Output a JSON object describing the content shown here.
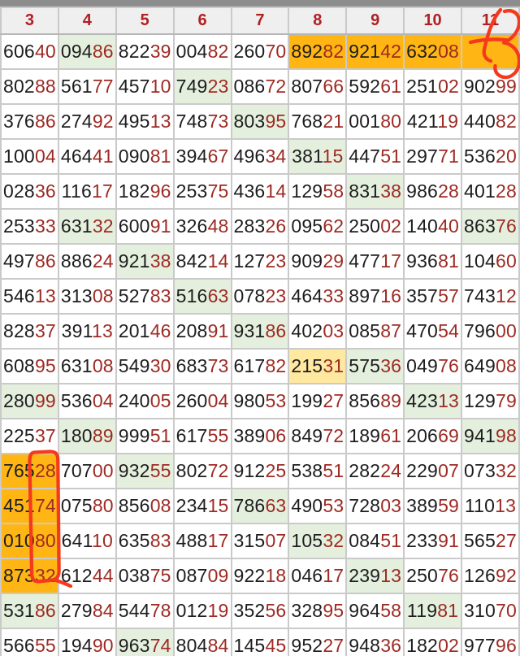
{
  "table": {
    "headers": [
      "3",
      "4",
      "5",
      "6",
      "7",
      "8",
      "9",
      "10",
      "11"
    ],
    "rows": [
      {
        "cells": [
          {
            "v": "60640",
            "h": ""
          },
          {
            "v": "09486",
            "h": "green"
          },
          {
            "v": "82239",
            "h": ""
          },
          {
            "v": "00482",
            "h": ""
          },
          {
            "v": "26070",
            "h": ""
          },
          {
            "v": "89282",
            "h": "orange"
          },
          {
            "v": "92142",
            "h": "orange"
          },
          {
            "v": "63208",
            "h": "orange"
          },
          {
            "v": "",
            "h": "orange"
          }
        ]
      },
      {
        "cells": [
          {
            "v": "80288",
            "h": ""
          },
          {
            "v": "56177",
            "h": ""
          },
          {
            "v": "45710",
            "h": ""
          },
          {
            "v": "74923",
            "h": "green"
          },
          {
            "v": "08672",
            "h": ""
          },
          {
            "v": "80766",
            "h": ""
          },
          {
            "v": "59261",
            "h": ""
          },
          {
            "v": "25102",
            "h": ""
          },
          {
            "v": "90299",
            "h": ""
          }
        ]
      },
      {
        "cells": [
          {
            "v": "37686",
            "h": ""
          },
          {
            "v": "27492",
            "h": ""
          },
          {
            "v": "49513",
            "h": ""
          },
          {
            "v": "74873",
            "h": ""
          },
          {
            "v": "80395",
            "h": "green"
          },
          {
            "v": "76821",
            "h": ""
          },
          {
            "v": "00180",
            "h": ""
          },
          {
            "v": "42119",
            "h": ""
          },
          {
            "v": "44082",
            "h": ""
          }
        ]
      },
      {
        "cells": [
          {
            "v": "10004",
            "h": ""
          },
          {
            "v": "46441",
            "h": ""
          },
          {
            "v": "09081",
            "h": ""
          },
          {
            "v": "39467",
            "h": ""
          },
          {
            "v": "49634",
            "h": ""
          },
          {
            "v": "38115",
            "h": "green"
          },
          {
            "v": "44751",
            "h": ""
          },
          {
            "v": "29771",
            "h": ""
          },
          {
            "v": "53620",
            "h": ""
          }
        ]
      },
      {
        "cells": [
          {
            "v": "02836",
            "h": ""
          },
          {
            "v": "11617",
            "h": ""
          },
          {
            "v": "18296",
            "h": ""
          },
          {
            "v": "25375",
            "h": ""
          },
          {
            "v": "43614",
            "h": ""
          },
          {
            "v": "12958",
            "h": ""
          },
          {
            "v": "83138",
            "h": "green"
          },
          {
            "v": "98628",
            "h": ""
          },
          {
            "v": "40128",
            "h": ""
          }
        ]
      },
      {
        "cells": [
          {
            "v": "25333",
            "h": ""
          },
          {
            "v": "63132",
            "h": "green"
          },
          {
            "v": "60091",
            "h": ""
          },
          {
            "v": "32648",
            "h": ""
          },
          {
            "v": "28326",
            "h": ""
          },
          {
            "v": "09562",
            "h": ""
          },
          {
            "v": "25002",
            "h": ""
          },
          {
            "v": "14040",
            "h": ""
          },
          {
            "v": "86376",
            "h": "green"
          }
        ]
      },
      {
        "cells": [
          {
            "v": "49786",
            "h": ""
          },
          {
            "v": "88624",
            "h": ""
          },
          {
            "v": "92138",
            "h": "green"
          },
          {
            "v": "84214",
            "h": ""
          },
          {
            "v": "12723",
            "h": ""
          },
          {
            "v": "90929",
            "h": ""
          },
          {
            "v": "47717",
            "h": ""
          },
          {
            "v": "93681",
            "h": ""
          },
          {
            "v": "10460",
            "h": ""
          }
        ]
      },
      {
        "cells": [
          {
            "v": "54613",
            "h": ""
          },
          {
            "v": "31308",
            "h": ""
          },
          {
            "v": "52783",
            "h": ""
          },
          {
            "v": "51663",
            "h": "green"
          },
          {
            "v": "07823",
            "h": ""
          },
          {
            "v": "46433",
            "h": ""
          },
          {
            "v": "89716",
            "h": ""
          },
          {
            "v": "35757",
            "h": ""
          },
          {
            "v": "74312",
            "h": ""
          }
        ]
      },
      {
        "cells": [
          {
            "v": "82837",
            "h": ""
          },
          {
            "v": "39113",
            "h": ""
          },
          {
            "v": "20146",
            "h": ""
          },
          {
            "v": "20891",
            "h": ""
          },
          {
            "v": "93186",
            "h": "green"
          },
          {
            "v": "40203",
            "h": ""
          },
          {
            "v": "08587",
            "h": ""
          },
          {
            "v": "47054",
            "h": ""
          },
          {
            "v": "79600",
            "h": ""
          }
        ]
      },
      {
        "cells": [
          {
            "v": "60895",
            "h": ""
          },
          {
            "v": "63108",
            "h": ""
          },
          {
            "v": "54930",
            "h": ""
          },
          {
            "v": "68373",
            "h": ""
          },
          {
            "v": "61782",
            "h": ""
          },
          {
            "v": "21531",
            "h": "yellow"
          },
          {
            "v": "57536",
            "h": "green"
          },
          {
            "v": "04976",
            "h": ""
          },
          {
            "v": "64908",
            "h": ""
          }
        ]
      },
      {
        "cells": [
          {
            "v": "28099",
            "h": "green"
          },
          {
            "v": "53604",
            "h": ""
          },
          {
            "v": "24005",
            "h": ""
          },
          {
            "v": "26004",
            "h": ""
          },
          {
            "v": "98053",
            "h": ""
          },
          {
            "v": "19927",
            "h": ""
          },
          {
            "v": "85689",
            "h": ""
          },
          {
            "v": "42313",
            "h": "green"
          },
          {
            "v": "12979",
            "h": ""
          }
        ]
      },
      {
        "cells": [
          {
            "v": "22537",
            "h": ""
          },
          {
            "v": "18089",
            "h": "green"
          },
          {
            "v": "99951",
            "h": ""
          },
          {
            "v": "61755",
            "h": ""
          },
          {
            "v": "38906",
            "h": ""
          },
          {
            "v": "84972",
            "h": ""
          },
          {
            "v": "18961",
            "h": ""
          },
          {
            "v": "20669",
            "h": ""
          },
          {
            "v": "94198",
            "h": "green"
          }
        ]
      },
      {
        "cells": [
          {
            "v": "76528",
            "h": "orange"
          },
          {
            "v": "70700",
            "h": ""
          },
          {
            "v": "93255",
            "h": "green"
          },
          {
            "v": "80272",
            "h": ""
          },
          {
            "v": "91225",
            "h": ""
          },
          {
            "v": "53851",
            "h": ""
          },
          {
            "v": "28224",
            "h": ""
          },
          {
            "v": "22907",
            "h": ""
          },
          {
            "v": "07332",
            "h": ""
          }
        ]
      },
      {
        "cells": [
          {
            "v": "45174",
            "h": "orange"
          },
          {
            "v": "07580",
            "h": ""
          },
          {
            "v": "85608",
            "h": ""
          },
          {
            "v": "23415",
            "h": ""
          },
          {
            "v": "78663",
            "h": "green"
          },
          {
            "v": "49053",
            "h": ""
          },
          {
            "v": "72803",
            "h": ""
          },
          {
            "v": "38959",
            "h": ""
          },
          {
            "v": "11013",
            "h": ""
          }
        ]
      },
      {
        "cells": [
          {
            "v": "01080",
            "h": "orange"
          },
          {
            "v": "64110",
            "h": ""
          },
          {
            "v": "63583",
            "h": ""
          },
          {
            "v": "48817",
            "h": ""
          },
          {
            "v": "31507",
            "h": ""
          },
          {
            "v": "10532",
            "h": "green"
          },
          {
            "v": "08451",
            "h": ""
          },
          {
            "v": "23391",
            "h": ""
          },
          {
            "v": "56527",
            "h": ""
          }
        ]
      },
      {
        "cells": [
          {
            "v": "87332",
            "h": "orange"
          },
          {
            "v": "61244",
            "h": ""
          },
          {
            "v": "03875",
            "h": ""
          },
          {
            "v": "08709",
            "h": ""
          },
          {
            "v": "92218",
            "h": ""
          },
          {
            "v": "04617",
            "h": ""
          },
          {
            "v": "23913",
            "h": "green"
          },
          {
            "v": "25076",
            "h": ""
          },
          {
            "v": "12692",
            "h": ""
          }
        ]
      },
      {
        "cells": [
          {
            "v": "53186",
            "h": "green"
          },
          {
            "v": "27984",
            "h": ""
          },
          {
            "v": "54478",
            "h": ""
          },
          {
            "v": "01219",
            "h": ""
          },
          {
            "v": "35256",
            "h": ""
          },
          {
            "v": "32895",
            "h": ""
          },
          {
            "v": "96458",
            "h": ""
          },
          {
            "v": "11981",
            "h": "green"
          },
          {
            "v": "31070",
            "h": ""
          }
        ]
      },
      {
        "cells": [
          {
            "v": "56655",
            "h": ""
          },
          {
            "v": "19490",
            "h": ""
          },
          {
            "v": "96374",
            "h": "green"
          },
          {
            "v": "80484",
            "h": ""
          },
          {
            "v": "14545",
            "h": ""
          },
          {
            "v": "95227",
            "h": ""
          },
          {
            "v": "94836",
            "h": ""
          },
          {
            "v": "18202",
            "h": ""
          },
          {
            "v": "97796",
            "h": ""
          }
        ]
      }
    ]
  },
  "annotations": {
    "ink_color": "#f5391f",
    "marks": [
      {
        "name": "handwritten-73",
        "text": "73"
      },
      {
        "name": "loop-around-column-3-endings",
        "text": ""
      }
    ]
  },
  "colors": {
    "top_bar": "#8d8d8d",
    "header_bg": "#efefef",
    "header_text": "#b01f22",
    "digit_black": "#1d1d1f",
    "digit_red": "#9e2a23",
    "highlight_orange": "#ffb513",
    "highlight_green": "#e4f0dd",
    "highlight_yellow": "#ffe8a0",
    "grid_border": "#cacaca"
  }
}
